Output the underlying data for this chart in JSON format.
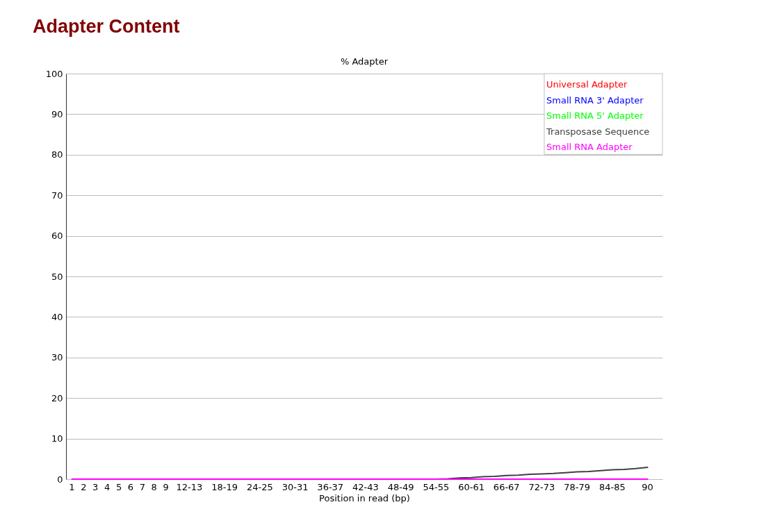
{
  "chart_data": {
    "type": "line",
    "title": "Adapter Content",
    "subtitle": "% Adapter",
    "xlabel": "Position in read (bp)",
    "categories": [
      "1",
      "2",
      "3",
      "4",
      "5",
      "6",
      "7",
      "8",
      "9",
      null,
      "12-13",
      null,
      null,
      "18-19",
      null,
      null,
      "24-25",
      null,
      null,
      "30-31",
      null,
      null,
      "36-37",
      null,
      null,
      "42-43",
      null,
      null,
      "48-49",
      null,
      null,
      "54-55",
      null,
      null,
      "60-61",
      null,
      null,
      "66-67",
      null,
      null,
      "72-73",
      null,
      null,
      "78-79",
      null,
      null,
      "84-85",
      null,
      null,
      "90"
    ],
    "series": [
      {
        "name": "Universal Adapter",
        "color": "#ff0000",
        "values": [
          null,
          null,
          null,
          null,
          null,
          null,
          null,
          null,
          null,
          null,
          null,
          null,
          null,
          null,
          null,
          null,
          null,
          null,
          null,
          null,
          null,
          null,
          null,
          null,
          null,
          null,
          null,
          null,
          null,
          null,
          null,
          null,
          null,
          null,
          null,
          null,
          null,
          null,
          null,
          null,
          null,
          null,
          null,
          null,
          null,
          null,
          null,
          null,
          null,
          null
        ]
      },
      {
        "name": "Small RNA 3' Adapter",
        "color": "#0000ff",
        "values": [
          null,
          null,
          null,
          null,
          null,
          null,
          null,
          null,
          null,
          null,
          null,
          null,
          null,
          null,
          null,
          null,
          null,
          null,
          null,
          null,
          null,
          null,
          null,
          null,
          null,
          null,
          null,
          null,
          null,
          null,
          null,
          null,
          null,
          null,
          null,
          null,
          null,
          null,
          null,
          null,
          null,
          null,
          null,
          null,
          null,
          null,
          null,
          null,
          null,
          null
        ]
      },
      {
        "name": "Small RNA 5' Adapter",
        "color": "#00ff00",
        "values": [
          null,
          null,
          null,
          null,
          null,
          null,
          null,
          null,
          null,
          null,
          null,
          null,
          null,
          null,
          null,
          null,
          null,
          null,
          null,
          null,
          null,
          null,
          null,
          null,
          null,
          null,
          null,
          null,
          null,
          null,
          null,
          null,
          null,
          null,
          null,
          null,
          null,
          null,
          null,
          null,
          null,
          null,
          null,
          null,
          null,
          null,
          null,
          null,
          null,
          null
        ]
      },
      {
        "name": "Transposase Sequence",
        "color": "#404040",
        "values": [
          null,
          null,
          null,
          null,
          null,
          null,
          null,
          null,
          null,
          null,
          null,
          null,
          null,
          null,
          null,
          null,
          null,
          null,
          null,
          null,
          null,
          null,
          null,
          null,
          null,
          null,
          null,
          null,
          null,
          null,
          null,
          0,
          0.1,
          0.3,
          0.4,
          0.6,
          0.7,
          0.9,
          1.0,
          1.2,
          1.3,
          1.4,
          1.6,
          1.8,
          1.9,
          2.1,
          2.3,
          2.4,
          2.6,
          2.9
        ]
      },
      {
        "name": "Small RNA Adapter",
        "color": "#ff00ff",
        "values": [
          0,
          0,
          0,
          0,
          0,
          0,
          0,
          0,
          0,
          0,
          0,
          0,
          0,
          0,
          0,
          0,
          0,
          0,
          0,
          0,
          0,
          0,
          0,
          0,
          0,
          0,
          0,
          0,
          0,
          0,
          0,
          0,
          0,
          0,
          0,
          0,
          0,
          0,
          0,
          0,
          0,
          0,
          0,
          0,
          0,
          0,
          0,
          0,
          0,
          0
        ]
      }
    ],
    "ylim": [
      0,
      100
    ],
    "yticks": [
      0,
      10,
      20,
      30,
      40,
      50,
      60,
      70,
      80,
      90,
      100
    ],
    "grid": "y",
    "legend": "top right",
    "line_style": "solid"
  }
}
